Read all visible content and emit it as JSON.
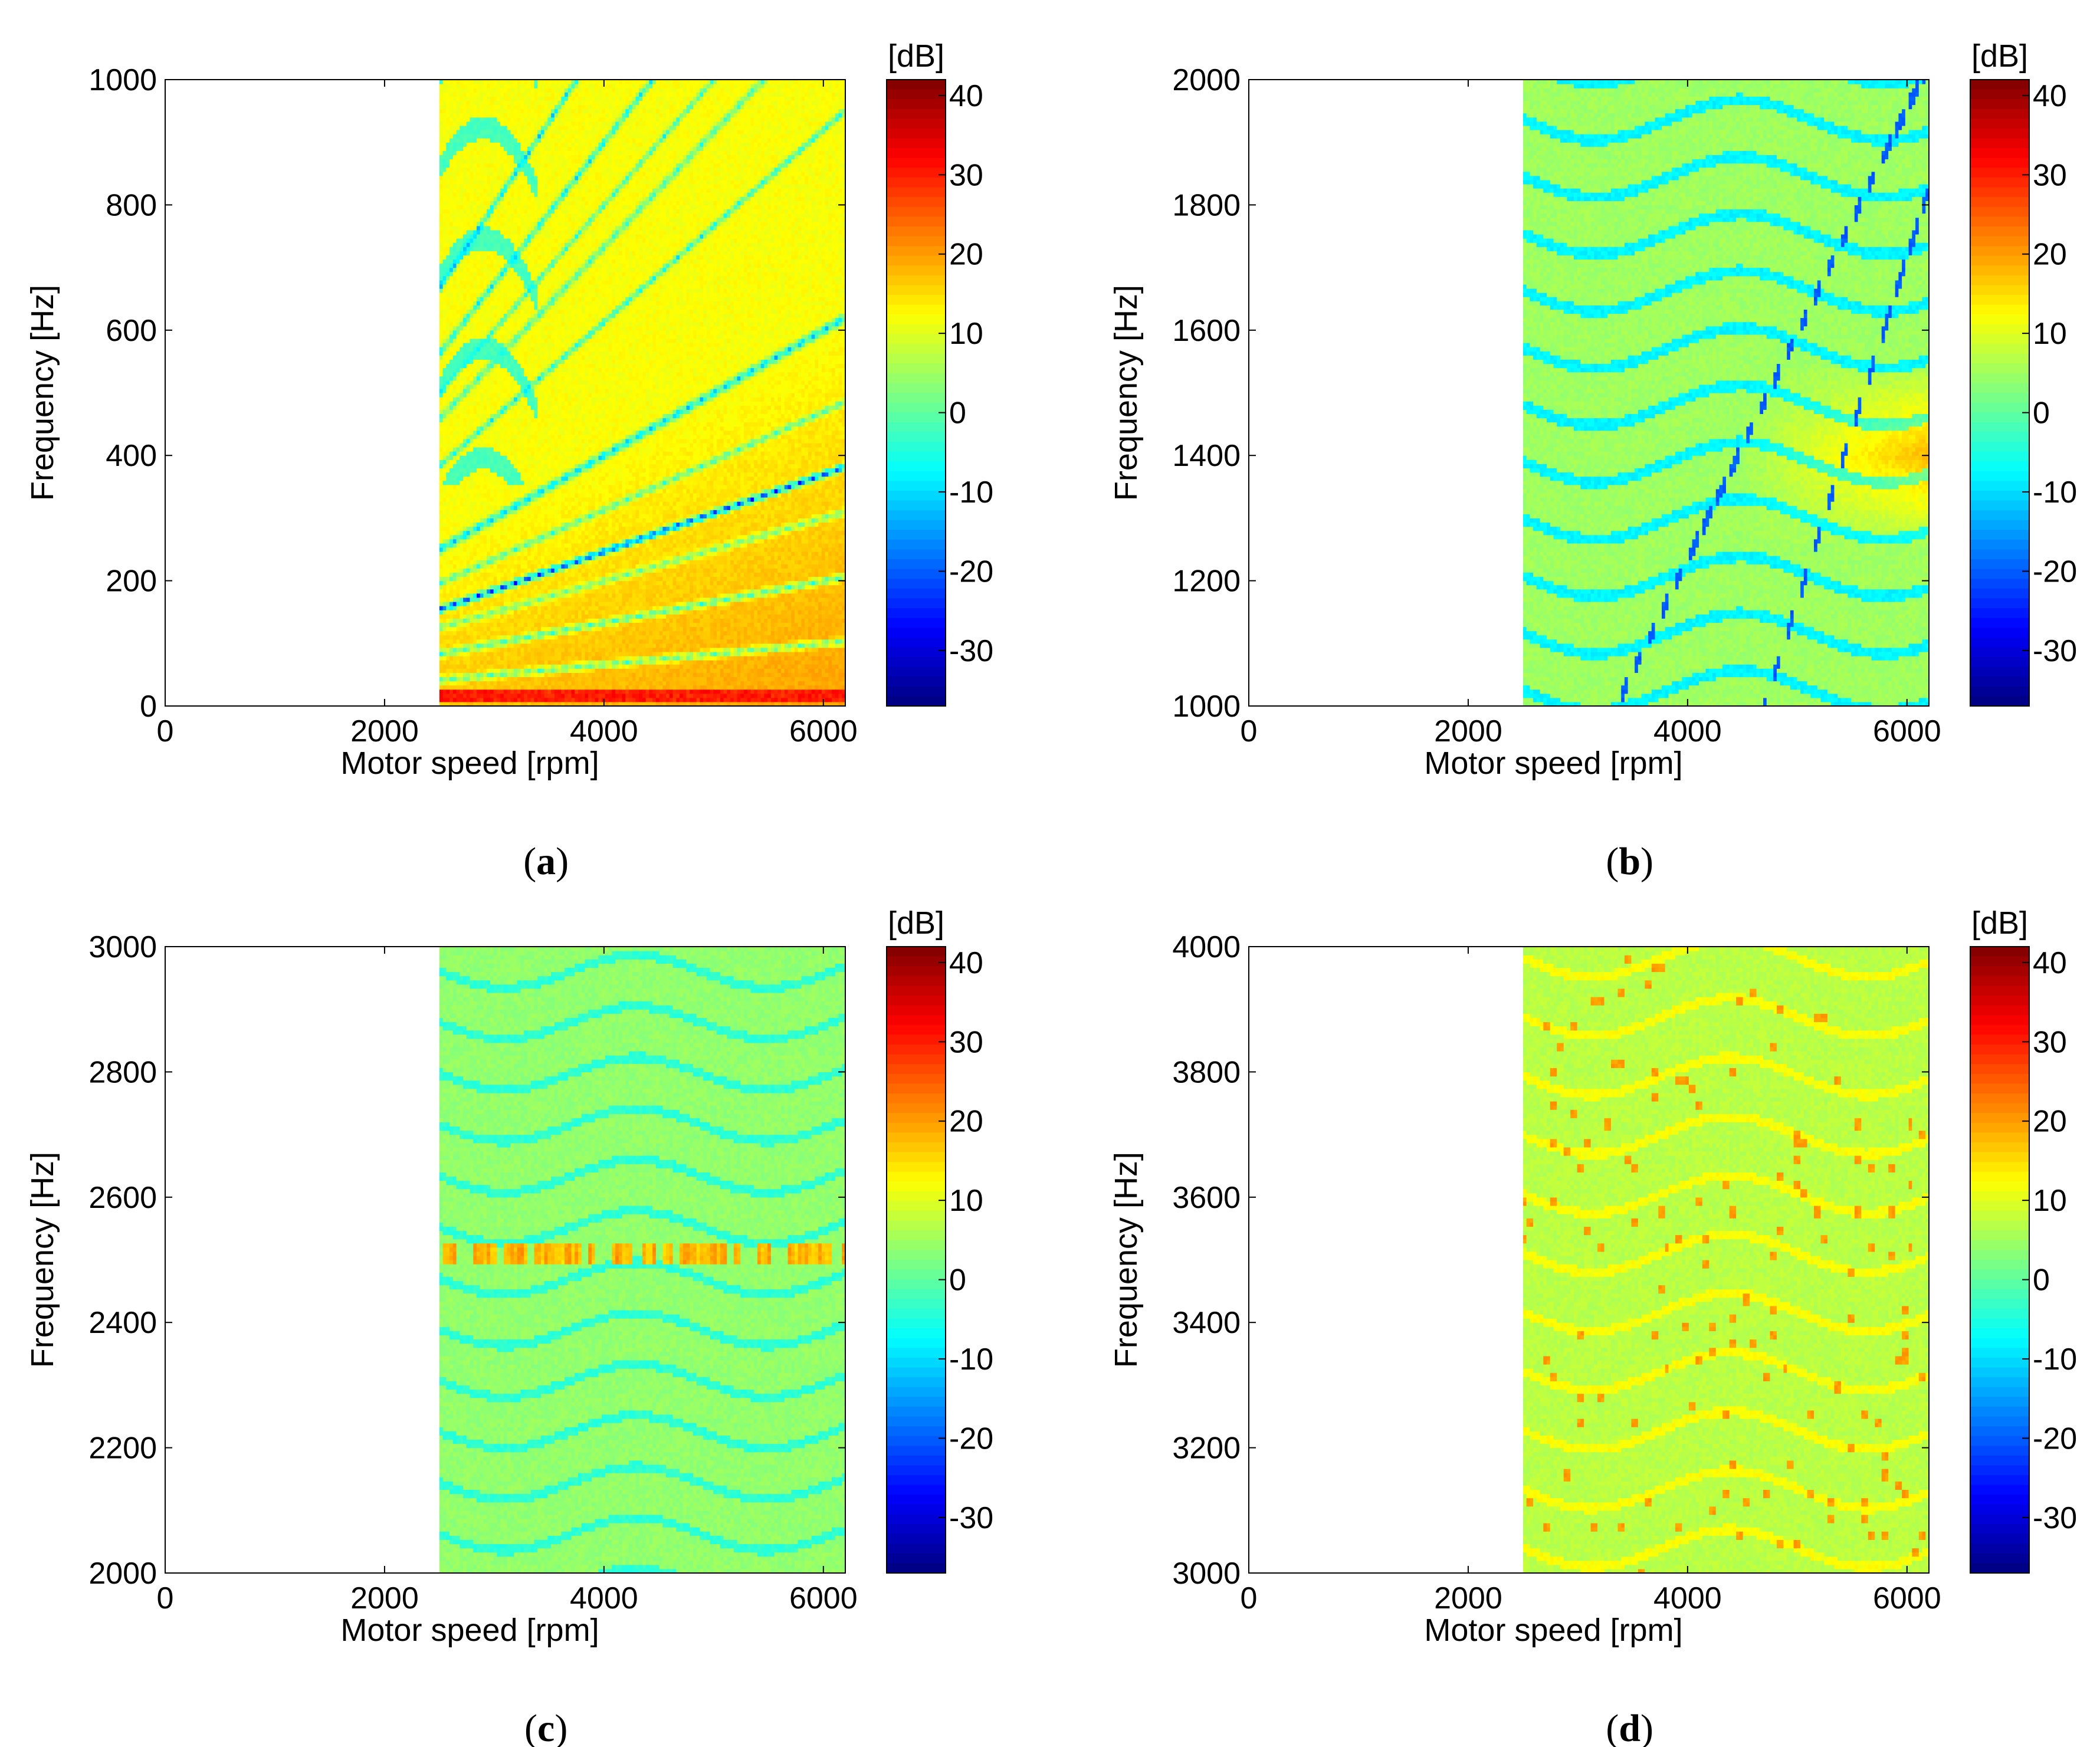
{
  "colorbar": {
    "unit_label": "[dB]",
    "ticks": [
      40,
      30,
      20,
      10,
      0,
      -10,
      -20,
      -30
    ],
    "range": [
      -37,
      42
    ],
    "colormap": "jet"
  },
  "chart_data": [
    {
      "type": "heatmap",
      "panel": "(a)",
      "caption_letter": "a",
      "xlabel": "Motor speed [rpm]",
      "ylabel": "Frequency [Hz]",
      "xlim": [
        0,
        6200
      ],
      "ylim": [
        0,
        1000
      ],
      "xticks": [
        0,
        2000,
        4000,
        6000
      ],
      "yticks": [
        0,
        200,
        400,
        600,
        800,
        1000
      ],
      "data_x_range": [
        2500,
        6200
      ],
      "colorbar_label": "[dB]",
      "base_level_db": 12,
      "ridges_low": [
        {
          "order": 3.7,
          "level_db": -28,
          "width_hz": 4
        },
        {
          "order": 6.0,
          "level_db": -15,
          "width_hz": 5
        },
        {
          "order": 9.2,
          "level_db": -10,
          "width_hz": 4
        },
        {
          "order": 12.0,
          "level_db": -8,
          "width_hz": 4
        },
        {
          "order": 4.7,
          "level_db": -5,
          "width_hz": 4
        },
        {
          "order": 3.0,
          "level_db": -2,
          "width_hz": 4
        },
        {
          "order": 2.0,
          "level_db": -6,
          "width_hz": 4
        },
        {
          "order": 1.0,
          "level_db": -4,
          "width_hz": 4
        }
      ],
      "ridges_high": [
        {
          "order": 24.0,
          "level_db": -32,
          "width_hz": 6
        },
        {
          "order": 16.0,
          "level_db": -15,
          "width_hz": 5
        },
        {
          "order": 13.5,
          "level_db": -12,
          "width_hz": 5
        },
        {
          "order": 11.0,
          "level_db": -6,
          "width_hz": 5
        }
      ],
      "features": {
        "low_band_hz": 15,
        "low_band_db": 32,
        "warm_region_db": 20
      }
    },
    {
      "type": "heatmap",
      "panel": "(b)",
      "caption_letter": "b",
      "xlabel": "Motor speed [rpm]",
      "ylabel": "Frequency [Hz]",
      "xlim": [
        0,
        6200
      ],
      "ylim": [
        1000,
        2000
      ],
      "xticks": [
        0,
        2000,
        4000,
        6000
      ],
      "yticks": [
        1000,
        1200,
        1400,
        1600,
        1800,
        2000
      ],
      "data_x_range": [
        2500,
        6200
      ],
      "colorbar_label": "[dB]",
      "base_level_db": 5,
      "ridges_high": [
        {
          "order": 1.1,
          "level_db": -20,
          "width_hz": 8
        },
        {
          "order": 0.9,
          "level_db": -20,
          "width_hz": 8
        }
      ],
      "features": {
        "hot_region_rpm": [
          4500,
          6200
        ],
        "hot_region_hz": [
          1250,
          1550
        ],
        "hot_level_db": 18
      }
    },
    {
      "type": "heatmap",
      "panel": "(c)",
      "caption_letter": "c",
      "xlabel": "Motor speed [rpm]",
      "ylabel": "Frequency [Hz]",
      "xlim": [
        0,
        6200
      ],
      "ylim": [
        2000,
        3000
      ],
      "xticks": [
        0,
        2000,
        4000,
        6000
      ],
      "yticks": [
        2000,
        2200,
        2400,
        2600,
        2800,
        3000
      ],
      "data_x_range": [
        2500,
        6200
      ],
      "colorbar_label": "[dB]",
      "base_level_db": 4,
      "features": {
        "band_hz": 2510,
        "band_level_db": 15
      }
    },
    {
      "type": "heatmap",
      "panel": "(d)",
      "caption_letter": "d",
      "xlabel": "Motor speed [rpm]",
      "ylabel": "Frequency [Hz]",
      "xlim": [
        0,
        6200
      ],
      "ylim": [
        3000,
        4000
      ],
      "xticks": [
        0,
        2000,
        4000,
        6000
      ],
      "yticks": [
        3000,
        3200,
        3400,
        3600,
        3800,
        4000
      ],
      "data_x_range": [
        2500,
        6200
      ],
      "colorbar_label": "[dB]",
      "base_level_db": 7,
      "features": {
        "hot_spots_db": 20
      }
    }
  ]
}
